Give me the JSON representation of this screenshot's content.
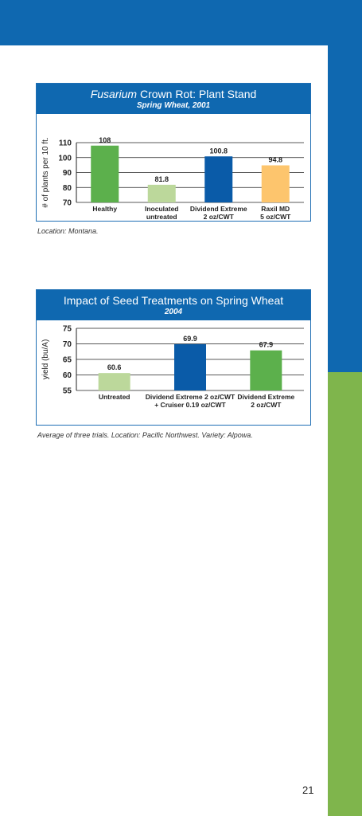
{
  "colors": {
    "blue": "#0f68b0",
    "green": "#7fb54c",
    "bar_green": "#5cb04c",
    "bar_lightgreen": "#bcd89b",
    "bar_blue": "#0a5ba8",
    "bar_yellow": "#fdc56d"
  },
  "charts": [
    {
      "title_italic": "Fusarium",
      "title_rest": " Crown Rot: Plant Stand",
      "subtitle": "Spring Wheat, 2001",
      "caption": "Location: Montana."
    },
    {
      "title": "Impact of Seed Treatments on Spring Wheat",
      "subtitle": "2004",
      "caption": "Average of three trials. Location: Pacific Northwest. Variety: Alpowa."
    }
  ],
  "chart_data": [
    {
      "type": "bar",
      "title": "Fusarium Crown Rot: Plant Stand",
      "subtitle": "Spring Wheat, 2001",
      "ylabel": "# of plants per 10 ft.",
      "ylim": [
        70,
        110
      ],
      "yticks": [
        70,
        80,
        90,
        100,
        110
      ],
      "categories": [
        [
          "Healthy"
        ],
        [
          "Inoculated",
          "untreated"
        ],
        [
          "Dividend Extreme",
          "2 oz/CWT"
        ],
        [
          "Raxil MD",
          "5 oz/CWT"
        ]
      ],
      "values": [
        108,
        81.8,
        100.8,
        94.8
      ],
      "value_labels": [
        "108",
        "81.8",
        "100.8",
        "94.8"
      ],
      "bar_colors": [
        "#5cb04c",
        "#bcd89b",
        "#0a5ba8",
        "#fdc56d"
      ],
      "grid": true
    },
    {
      "type": "bar",
      "title": "Impact of Seed Treatments on Spring Wheat",
      "subtitle": "2004",
      "ylabel": "yield (bu/A)",
      "ylim": [
        55,
        75
      ],
      "yticks": [
        55,
        60,
        65,
        70,
        75
      ],
      "categories": [
        [
          "Untreated"
        ],
        [
          "Dividend Extreme 2 oz/CWT",
          "+ Cruiser 0.19 oz/CWT"
        ],
        [
          "Dividend Extreme",
          "2 oz/CWT"
        ]
      ],
      "values": [
        60.6,
        69.9,
        67.9
      ],
      "value_labels": [
        "60.6",
        "69.9",
        "67.9"
      ],
      "bar_colors": [
        "#bcd89b",
        "#0a5ba8",
        "#5cb04c"
      ],
      "grid": true
    }
  ],
  "page_number": "21"
}
